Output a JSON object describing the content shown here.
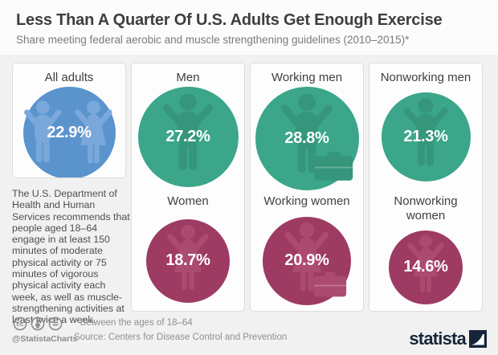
{
  "header": {
    "title": "Less Than A Quarter Of U.S. Adults Get Enough Exercise",
    "subtitle": "Share meeting federal aerobic and muscle strengthening guidelines (2010–2015)*"
  },
  "note": "The U.S. Department of Health and Human Services recommends that people aged 18–64 engage in at least 150 minutes of moderate physical activity or 75 minutes of vigorous physical activity each week, as well as muscle-strengthening activities at least twice a week.",
  "colors": {
    "blue": {
      "circle": "#5b94cd",
      "fig": "#7aa8db"
    },
    "green": {
      "circle": "#3ba689",
      "fig": "#35967b"
    },
    "maroon": {
      "circle": "#9e3b63",
      "fig": "#ac4b70"
    }
  },
  "cells": [
    {
      "label": "All adults",
      "value": 22.9,
      "display": "22.9%",
      "group": "blue",
      "figure": "man-and-woman",
      "briefcase": false
    },
    {
      "label": "Men",
      "value": 27.2,
      "display": "27.2%",
      "group": "green",
      "figure": "man",
      "briefcase": false
    },
    {
      "label": "Women",
      "value": 18.7,
      "display": "18.7%",
      "group": "maroon",
      "figure": "woman",
      "briefcase": false
    },
    {
      "label": "Working men",
      "value": 28.8,
      "display": "28.8%",
      "group": "green",
      "figure": "man",
      "briefcase": true
    },
    {
      "label": "Working women",
      "value": 20.9,
      "display": "20.9%",
      "group": "maroon",
      "figure": "woman",
      "briefcase": true
    },
    {
      "label": "Nonworking men",
      "value": 21.3,
      "display": "21.3%",
      "group": "green",
      "figure": "man",
      "briefcase": false
    },
    {
      "label": "Nonworking women",
      "value": 14.6,
      "display": "14.6%",
      "group": "maroon",
      "figure": "woman",
      "briefcase": false
    }
  ],
  "footer": {
    "cc_glyph": "cc",
    "handle": "@StatistaCharts",
    "footnote": "* Between the ages of 18–64",
    "source": "Source: Centers for Disease Control and Prevention",
    "brand": "statista"
  },
  "chart_data": {
    "type": "bar",
    "variant": "pictorial-proportional-circles",
    "title": "Less Than A Quarter Of U.S. Adults Get Enough Exercise",
    "subtitle": "Share meeting federal aerobic and muscle strengthening guidelines (2010–2015)*",
    "unit": "%",
    "categories": [
      "All adults",
      "Men",
      "Women",
      "Working men",
      "Working women",
      "Nonworking men",
      "Nonworking women"
    ],
    "values": [
      22.9,
      27.2,
      18.7,
      28.8,
      20.9,
      21.3,
      14.6
    ],
    "footnote": "* Between the ages of 18–64",
    "source": "Source: Centers for Disease Control and Prevention"
  }
}
